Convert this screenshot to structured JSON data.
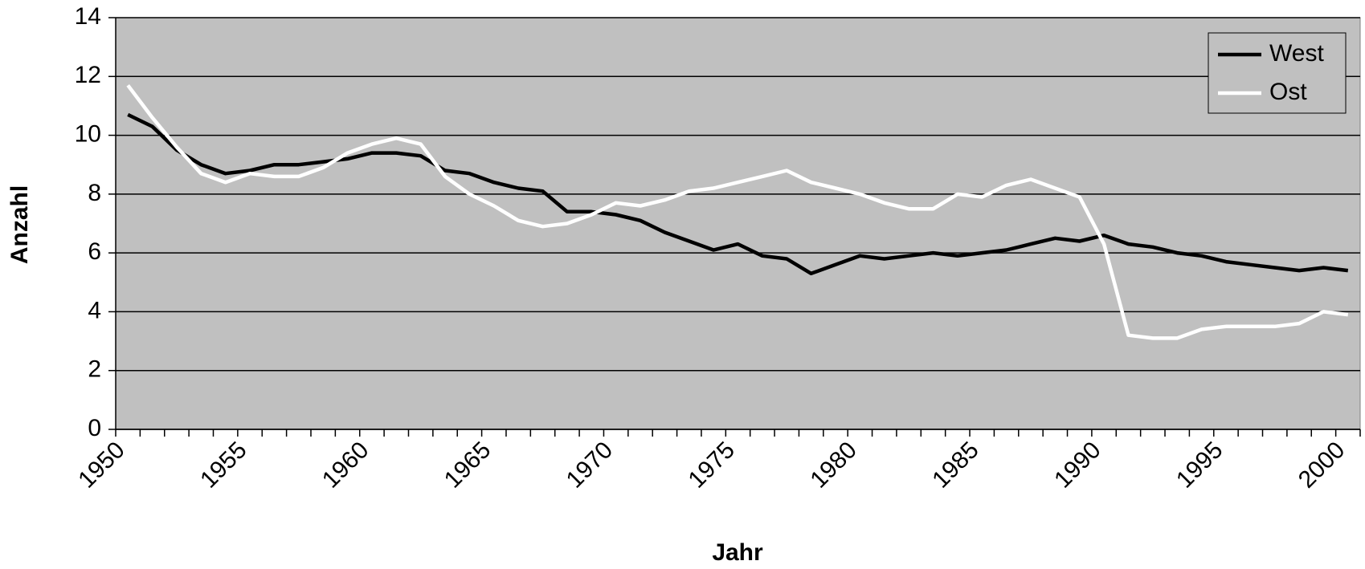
{
  "chart_data": {
    "type": "line",
    "x_label": "Jahr",
    "y_label": "Anzahl",
    "categories": [
      "1950",
      null,
      null,
      null,
      null,
      "1955",
      null,
      null,
      null,
      null,
      "1960",
      null,
      null,
      null,
      null,
      "1965",
      null,
      null,
      null,
      null,
      "1970",
      null,
      null,
      null,
      null,
      "1975",
      null,
      null,
      null,
      null,
      "1980",
      null,
      null,
      null,
      null,
      "1985",
      null,
      null,
      null,
      null,
      "1990",
      null,
      null,
      null,
      null,
      "1995",
      null,
      null,
      null,
      null,
      "2000"
    ],
    "series": [
      {
        "name": "West",
        "color": "#000000",
        "values": [
          10.7,
          10.3,
          9.5,
          9.0,
          8.7,
          8.8,
          9.0,
          9.0,
          9.1,
          9.2,
          9.4,
          9.4,
          9.3,
          8.8,
          8.7,
          8.4,
          8.2,
          8.1,
          7.4,
          7.4,
          7.3,
          7.1,
          6.7,
          6.4,
          6.1,
          6.3,
          5.9,
          5.8,
          5.3,
          5.6,
          5.9,
          5.8,
          5.9,
          6.0,
          5.9,
          6.0,
          6.1,
          6.3,
          6.5,
          6.4,
          6.6,
          6.3,
          6.2,
          6.0,
          5.9,
          5.7,
          5.6,
          5.5,
          5.4,
          5.5,
          5.4
        ]
      },
      {
        "name": "Ost",
        "color": "#ffffff",
        "values": [
          11.7,
          10.6,
          9.6,
          8.7,
          8.4,
          8.7,
          8.6,
          8.6,
          8.9,
          9.4,
          9.7,
          9.9,
          9.7,
          8.6,
          8.0,
          7.6,
          7.1,
          6.9,
          7.0,
          7.3,
          7.7,
          7.6,
          7.8,
          8.1,
          8.2,
          8.4,
          8.6,
          8.8,
          8.4,
          8.2,
          8.0,
          7.7,
          7.5,
          7.5,
          8.0,
          7.9,
          8.3,
          8.5,
          8.2,
          7.9,
          6.3,
          3.2,
          3.1,
          3.1,
          3.4,
          3.5,
          3.5,
          3.5,
          3.6,
          4.0,
          3.9
        ]
      }
    ],
    "ylim": [
      0,
      14
    ],
    "yticks": [
      0,
      2,
      4,
      6,
      8,
      10,
      12,
      14
    ],
    "grid": true,
    "legend": "upper right",
    "plot_background": "#c0c0c0"
  }
}
